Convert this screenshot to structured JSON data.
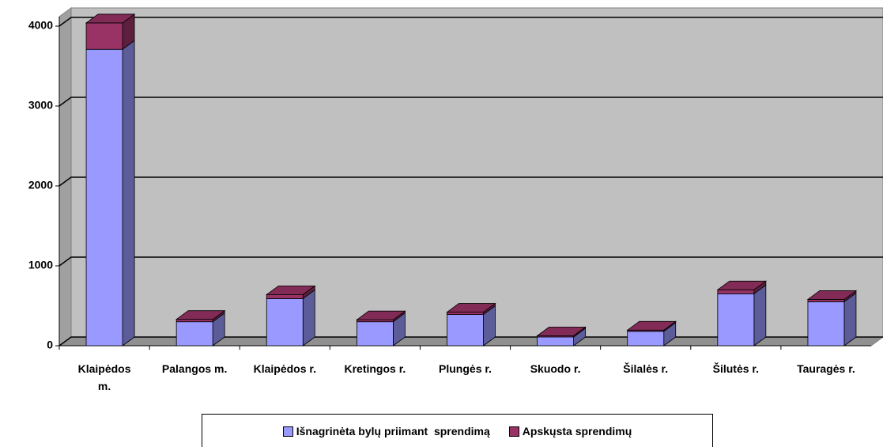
{
  "chart_data": {
    "type": "bar3d_stacked",
    "categories": [
      "Klaipėdos m.",
      "Palangos m.",
      "Klaipėdos r.",
      "Kretingos r.",
      "Plungės r.",
      "Skuodo r.",
      "Šilalės r.",
      "Šilutės r.",
      "Tauragės r."
    ],
    "series": [
      {
        "name": "Išnagrinėta bylų priimant  sprendimą",
        "color": "#9999ff",
        "values": [
          3710,
          300,
          590,
          300,
          390,
          110,
          180,
          650,
          550
        ]
      },
      {
        "name": "Apskųsta sprendimų",
        "color": "#993366",
        "values": [
          330,
          30,
          50,
          25,
          30,
          15,
          15,
          50,
          30
        ]
      }
    ],
    "ylim": [
      0,
      4000
    ],
    "yticks": [
      0,
      1000,
      2000,
      3000,
      4000
    ],
    "grid": true,
    "legend": "bottom"
  }
}
